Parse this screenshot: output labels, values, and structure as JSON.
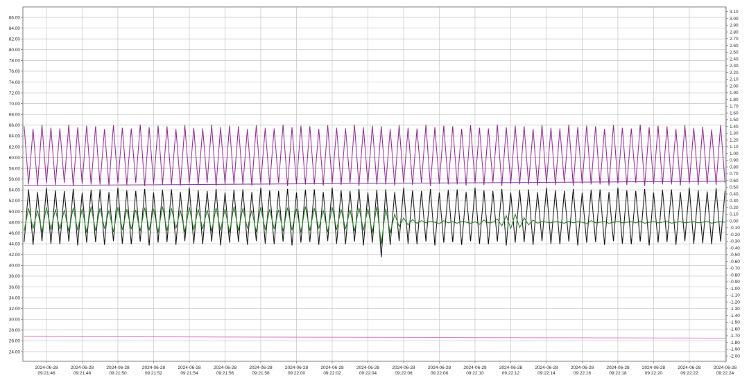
{
  "chart_data": {
    "type": "line",
    "x": [
      44.75,
      45,
      45.25,
      45.5,
      45.75,
      46,
      46.25,
      46.5,
      46.75,
      47,
      47.25,
      47.5,
      47.75,
      48,
      48.25,
      48.5,
      48.75,
      49,
      49.25,
      49.5,
      49.75,
      50,
      50.25,
      50.5,
      50.75,
      51,
      51.25,
      51.5,
      51.75,
      52,
      52.25,
      52.5,
      52.75,
      53,
      53.25,
      53.5,
      53.75,
      54,
      54.25,
      54.5,
      54.75,
      55,
      55.25,
      55.5,
      55.75,
      56,
      56.25,
      56.5,
      56.75,
      57,
      57.25,
      57.5,
      57.75,
      58,
      58.25,
      58.5,
      58.75,
      59,
      59.25,
      59.5,
      59.75,
      60,
      60.25,
      60.5,
      60.75,
      61,
      61.25,
      61.5,
      61.75,
      62,
      62.25,
      62.5,
      62.75,
      63,
      63.25,
      63.5,
      63.75,
      64,
      64.25,
      64.5,
      64.75,
      65,
      65.25,
      65.5,
      65.75,
      66,
      66.25,
      66.5,
      66.75,
      67,
      67.25,
      67.5,
      67.75,
      68,
      68.25,
      68.5,
      68.75,
      69,
      69.25,
      69.5,
      69.75,
      70,
      70.25,
      70.5,
      70.75,
      71,
      71.25,
      71.5,
      71.75,
      72,
      72.25,
      72.5,
      72.75,
      73,
      73.25,
      73.5,
      73.75,
      74,
      74.25,
      74.5,
      74.75,
      75,
      75.25,
      75.5,
      75.75,
      76,
      76.25,
      76.5,
      76.75,
      77,
      77.25,
      77.5,
      77.75,
      78,
      78.25,
      78.5,
      78.75,
      79,
      79.25,
      79.5,
      79.75,
      80,
      80.25,
      80.5,
      80.75,
      81,
      81.25,
      81.5,
      81.75,
      82,
      82.25,
      82.5,
      82.75,
      83,
      83.25,
      83.5,
      83.75,
      84
    ],
    "series": [
      {
        "color": "#8b1a8b",
        "values": [
          65.8,
          55.0,
          65.3,
          54.8,
          66.0,
          55.2,
          65.5,
          54.9,
          65.4,
          55.3,
          66.1,
          54.7,
          65.6,
          55.1,
          65.9,
          55.0,
          65.8,
          55.0,
          65.3,
          54.8,
          66.0,
          55.2,
          65.5,
          54.9,
          65.4,
          55.3,
          66.1,
          54.7,
          65.6,
          55.1,
          65.9,
          55.0,
          65.8,
          55.0,
          65.3,
          54.8,
          66.0,
          55.2,
          65.5,
          54.9,
          65.4,
          55.3,
          66.1,
          54.7,
          65.6,
          55.1,
          65.9,
          55.0,
          65.8,
          55.0,
          65.3,
          54.8,
          66.0,
          55.2,
          65.5,
          54.9,
          65.4,
          55.3,
          66.1,
          54.7,
          65.6,
          55.1,
          65.9,
          55.0,
          65.8,
          55.0,
          65.3,
          54.8,
          66.0,
          55.2,
          65.5,
          54.9,
          65.4,
          55.3,
          66.1,
          54.7,
          65.6,
          55.1,
          65.9,
          55.0,
          65.8,
          55.0,
          65.3,
          54.8,
          66.0,
          55.2,
          65.5,
          54.9,
          65.4,
          55.3,
          66.1,
          54.7,
          65.6,
          55.1,
          65.9,
          55.0,
          65.8,
          55.0,
          65.3,
          54.8,
          66.0,
          55.2,
          65.5,
          54.9,
          65.4,
          55.3,
          66.1,
          54.7,
          65.6,
          55.1,
          65.9,
          55.0,
          65.8,
          55.0,
          65.3,
          54.8,
          66.0,
          55.2,
          65.5,
          54.9,
          65.4,
          55.3,
          66.1,
          54.7,
          65.6,
          55.1,
          65.9,
          55.0,
          65.8,
          55.0,
          65.3,
          54.8,
          66.0,
          55.2,
          65.5,
          54.9,
          65.4,
          55.3,
          66.1,
          54.7,
          65.6,
          55.1,
          65.9,
          55.0,
          65.8,
          55.0,
          65.3,
          54.8,
          66.0,
          55.2,
          65.5,
          54.9,
          65.7,
          55.1,
          65.2,
          54.9,
          66.0,
          55.3
        ]
      },
      {
        "color": "#000000",
        "values": [
          44.3,
          54.1,
          43.8,
          53.6,
          44.5,
          54.4,
          44.0,
          53.9,
          43.9,
          53.8,
          44.4,
          54.2,
          43.7,
          53.5,
          44.2,
          54.0,
          44.3,
          54.1,
          43.8,
          53.6,
          44.5,
          54.4,
          44.0,
          53.9,
          43.9,
          53.8,
          44.4,
          54.2,
          43.7,
          53.5,
          44.2,
          54.0,
          44.3,
          54.1,
          43.8,
          53.6,
          44.5,
          54.4,
          44.0,
          53.9,
          43.9,
          53.8,
          44.4,
          54.2,
          43.7,
          53.5,
          44.2,
          54.0,
          44.3,
          54.1,
          43.8,
          53.6,
          44.5,
          54.4,
          44.0,
          53.9,
          43.9,
          53.8,
          44.4,
          54.2,
          43.7,
          53.5,
          44.2,
          54.0,
          44.3,
          54.1,
          43.8,
          53.6,
          44.5,
          54.4,
          44.0,
          53.9,
          43.9,
          53.8,
          44.4,
          54.2,
          43.7,
          53.5,
          44.2,
          54.0,
          41.5,
          54.1,
          43.8,
          53.6,
          44.5,
          54.4,
          44.0,
          53.9,
          43.9,
          53.8,
          44.4,
          54.2,
          43.7,
          53.5,
          44.2,
          54.0,
          44.3,
          54.1,
          43.8,
          53.6,
          44.5,
          54.4,
          44.0,
          53.9,
          43.9,
          53.8,
          44.4,
          54.2,
          43.7,
          53.5,
          44.2,
          54.0,
          44.3,
          54.1,
          43.8,
          53.6,
          44.5,
          54.4,
          44.0,
          53.9,
          43.9,
          53.8,
          44.4,
          54.2,
          43.7,
          53.5,
          44.2,
          54.0,
          44.3,
          54.1,
          43.8,
          53.6,
          44.5,
          54.4,
          44.0,
          53.9,
          43.9,
          53.8,
          44.4,
          54.2,
          43.7,
          53.5,
          44.2,
          54.0,
          44.3,
          54.1,
          43.8,
          53.6,
          44.5,
          54.4,
          44.0,
          53.9,
          44.1,
          53.7,
          43.9,
          54.3,
          44.4,
          53.8
        ]
      },
      {
        "color": "#1a7a1a",
        "values": [
          46.4,
          50.6,
          46.8,
          50.2,
          46.2,
          50.8,
          46.6,
          50.4,
          46.7,
          50.3,
          46.3,
          50.7,
          46.5,
          50.5,
          46.1,
          50.9,
          46.4,
          50.6,
          46.8,
          50.2,
          46.2,
          50.8,
          46.6,
          50.4,
          46.7,
          50.3,
          46.3,
          50.7,
          46.5,
          50.5,
          46.1,
          50.9,
          46.4,
          50.6,
          46.8,
          50.2,
          46.2,
          50.8,
          46.6,
          50.4,
          46.7,
          50.3,
          46.3,
          50.7,
          46.5,
          50.5,
          46.1,
          50.9,
          46.4,
          50.6,
          46.8,
          50.2,
          46.2,
          50.8,
          46.6,
          50.4,
          46.7,
          50.3,
          46.3,
          50.7,
          46.5,
          50.5,
          46.1,
          50.9,
          46.4,
          50.6,
          46.8,
          50.2,
          46.2,
          50.8,
          46.6,
          50.4,
          46.7,
          50.3,
          46.3,
          50.7,
          46.5,
          50.5,
          46.1,
          50.9,
          44.0,
          50.5,
          46.0,
          49.5,
          47.2,
          48.8,
          47.5,
          48.5,
          47.8,
          48.3,
          47.9,
          48.2,
          48.0,
          47.7,
          48.3,
          47.9,
          48.1,
          47.8,
          48.2,
          48.0,
          47.8,
          48.1,
          47.6,
          48.4,
          47.9,
          48.0,
          48.6,
          47.3,
          49.2,
          46.8,
          49.5,
          47.0,
          48.8,
          47.5,
          48.4,
          47.8,
          48.2,
          48.0,
          47.9,
          48.1,
          48.0,
          47.8,
          48.2,
          47.9,
          48.1,
          48.0,
          47.7,
          48.3,
          47.9,
          48.0,
          48.1,
          47.8,
          48.0,
          48.2,
          47.9,
          48.0,
          48.1,
          47.9,
          48.2,
          47.8,
          48.0,
          48.1,
          47.9,
          48.0,
          48.2,
          47.8,
          48.0,
          48.1,
          47.9,
          48.0,
          48.1,
          47.9,
          48.0,
          48.2,
          47.8,
          48.0,
          48.1,
          48.0
        ]
      },
      {
        "color": "#7a2a9a",
        "x": [
          44.75,
          84
        ],
        "values": [
          54.8,
          55.6
        ]
      },
      {
        "color": "#e070c0",
        "x": [
          44.75,
          84
        ],
        "values": [
          26.8,
          26.5
        ]
      }
    ],
    "xlim": [
      44.68,
      84.06
    ],
    "xticks": [
      {
        "value": 46,
        "label": "2024-06-28 09:21:46"
      },
      {
        "value": 48,
        "label": "2024-06-28 09:21:48"
      },
      {
        "value": 50,
        "label": "2024-06-28 09:21:50"
      },
      {
        "value": 52,
        "label": "2024-06-28 09:21:52"
      },
      {
        "value": 54,
        "label": "2024-06-28 09:21:54"
      },
      {
        "value": 56,
        "label": "2024-06-28 09:21:56"
      },
      {
        "value": 58,
        "label": "2024-06-28 09:21:58"
      },
      {
        "value": 60,
        "label": "2024-06-28 09:22:00"
      },
      {
        "value": 62,
        "label": "2024-06-28 09:22:02"
      },
      {
        "value": 64,
        "label": "2024-06-28 09:22:04"
      },
      {
        "value": 66,
        "label": "2024-06-28 09:22:06"
      },
      {
        "value": 68,
        "label": "2024-06-28 09:22:08"
      },
      {
        "value": 70,
        "label": "2024-06-28 09:22:10"
      },
      {
        "value": 72,
        "label": "2024-06-28 09:22:12"
      },
      {
        "value": 74,
        "label": "2024-06-28 09:22:14"
      },
      {
        "value": 76,
        "label": "2024-06-28 09:22:16"
      },
      {
        "value": 78,
        "label": "2024-06-28 09:22:18"
      },
      {
        "value": 80,
        "label": "2024-06-28 09:22:20"
      },
      {
        "value": 82,
        "label": "2024-06-28 09:22:22"
      },
      {
        "value": 84,
        "label": "2024-06-28 09:22:24"
      }
    ],
    "ylim": [
      22.2,
      87.93
    ],
    "yticks": [
      {
        "value": 24,
        "label": "24.00"
      },
      {
        "value": 26,
        "label": "26.00"
      },
      {
        "value": 28,
        "label": "28.00"
      },
      {
        "value": 30,
        "label": "30.00"
      },
      {
        "value": 32,
        "label": "32.00"
      },
      {
        "value": 34,
        "label": "34.00"
      },
      {
        "value": 36,
        "label": "36.00"
      },
      {
        "value": 38,
        "label": "38.00"
      },
      {
        "value": 40,
        "label": "40.00"
      },
      {
        "value": 42,
        "label": "42.00"
      },
      {
        "value": 44,
        "label": "44.00"
      },
      {
        "value": 46,
        "label": "46.00"
      },
      {
        "value": 48,
        "label": "48.00"
      },
      {
        "value": 50,
        "label": "50.00"
      },
      {
        "value": 52,
        "label": "52.00"
      },
      {
        "value": 54,
        "label": "54.00"
      },
      {
        "value": 56,
        "label": "56.00"
      },
      {
        "value": 58,
        "label": "58.00"
      },
      {
        "value": 60,
        "label": "60.00"
      },
      {
        "value": 62,
        "label": "62.00"
      },
      {
        "value": 64,
        "label": "64.00"
      },
      {
        "value": 66,
        "label": "66.00"
      },
      {
        "value": 68,
        "label": "68.00"
      },
      {
        "value": 70,
        "label": "70.00"
      },
      {
        "value": 72,
        "label": "72.00"
      },
      {
        "value": 74,
        "label": "74.00"
      },
      {
        "value": 76,
        "label": "76.00"
      },
      {
        "value": 78,
        "label": "78.00"
      },
      {
        "value": 80,
        "label": "80.00"
      },
      {
        "value": 82,
        "label": "82.00"
      },
      {
        "value": 84,
        "label": "84.00"
      },
      {
        "value": 86,
        "label": "86.00"
      }
    ],
    "y2lim": [
      -2.08,
      3.17
    ],
    "y2ticks": [
      {
        "value": -2,
        "label": "-2.00"
      },
      {
        "value": -1.9,
        "label": "-1.90"
      },
      {
        "value": -1.8,
        "label": "-1.80"
      },
      {
        "value": -1.7,
        "label": "-1.70"
      },
      {
        "value": -1.6,
        "label": "-1.60"
      },
      {
        "value": -1.5,
        "label": "-1.50"
      },
      {
        "value": -1.4,
        "label": "-1.40"
      },
      {
        "value": -1.3,
        "label": "-1.30"
      },
      {
        "value": -1.2,
        "label": "-1.20"
      },
      {
        "value": -1.1,
        "label": "-1.10"
      },
      {
        "value": -1,
        "label": "-1.00"
      },
      {
        "value": -0.9,
        "label": "-0.90"
      },
      {
        "value": -0.8,
        "label": "-0.80"
      },
      {
        "value": -0.7,
        "label": "-0.70"
      },
      {
        "value": -0.6,
        "label": "-0.60"
      },
      {
        "value": -0.5,
        "label": "-0.50"
      },
      {
        "value": -0.4,
        "label": "-0.40"
      },
      {
        "value": -0.3,
        "label": "-0.30"
      },
      {
        "value": -0.2,
        "label": "-0.20"
      },
      {
        "value": -0.1,
        "label": "-0.10"
      },
      {
        "value": 0,
        "label": "0.00"
      },
      {
        "value": 0.1,
        "label": "0.10"
      },
      {
        "value": 0.2,
        "label": "0.20"
      },
      {
        "value": 0.3,
        "label": "0.30"
      },
      {
        "value": 0.4,
        "label": "0.40"
      },
      {
        "value": 0.5,
        "label": "0.50"
      },
      {
        "value": 0.6,
        "label": "0.60"
      },
      {
        "value": 0.7,
        "label": "0.70"
      },
      {
        "value": 0.8,
        "label": "0.80"
      },
      {
        "value": 0.9,
        "label": "0.90"
      },
      {
        "value": 1,
        "label": "1.00"
      },
      {
        "value": 1.1,
        "label": "1.10"
      },
      {
        "value": 1.2,
        "label": "1.20"
      },
      {
        "value": 1.3,
        "label": "1.30"
      },
      {
        "value": 1.4,
        "label": "1.40"
      },
      {
        "value": 1.5,
        "label": "1.50"
      },
      {
        "value": 1.6,
        "label": "1.60"
      },
      {
        "value": 1.7,
        "label": "1.70"
      },
      {
        "value": 1.8,
        "label": "1.80"
      },
      {
        "value": 1.9,
        "label": "1.90"
      },
      {
        "value": 2,
        "label": "2.00"
      },
      {
        "value": 2.1,
        "label": "2.10"
      },
      {
        "value": 2.2,
        "label": "2.20"
      },
      {
        "value": 2.3,
        "label": "2.30"
      },
      {
        "value": 2.4,
        "label": "2.40"
      },
      {
        "value": 2.5,
        "label": "2.50"
      },
      {
        "value": 2.6,
        "label": "2.60"
      },
      {
        "value": 2.7,
        "label": "2.70"
      },
      {
        "value": 2.8,
        "label": "2.80"
      },
      {
        "value": 2.9,
        "label": "2.90"
      },
      {
        "value": 3,
        "label": "3.00"
      },
      {
        "value": 3.1,
        "label": "3.10"
      }
    ],
    "grid": true
  }
}
